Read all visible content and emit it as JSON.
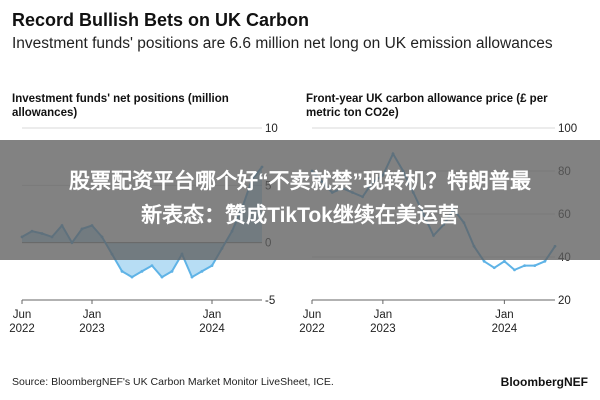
{
  "header": {
    "title": "Record Bullish Bets on UK Carbon",
    "subtitle": "Investment funds' positions are 6.6 million net long on UK emission allowances"
  },
  "chart_data": [
    {
      "type": "area",
      "title": "Investment funds' net positions (million allowances)",
      "x": [
        "2022-06",
        "2022-07",
        "2022-08",
        "2022-09",
        "2022-10",
        "2022-11",
        "2022-12",
        "2023-01",
        "2023-02",
        "2023-03",
        "2023-04",
        "2023-05",
        "2023-06",
        "2023-07",
        "2023-08",
        "2023-09",
        "2023-10",
        "2023-11",
        "2023-12",
        "2024-01",
        "2024-02",
        "2024-03",
        "2024-04",
        "2024-05",
        "2024-06"
      ],
      "values": [
        0.5,
        1.0,
        0.8,
        0.5,
        1.5,
        0.0,
        1.2,
        1.5,
        0.5,
        -1.0,
        -2.5,
        -3.0,
        -2.5,
        -2.0,
        -3.0,
        -2.5,
        -1.0,
        -3.0,
        -2.5,
        -2.0,
        -0.5,
        1.0,
        3.0,
        5.5,
        6.6
      ],
      "y_ticks": [
        "10",
        "5",
        "0",
        "-5"
      ],
      "ylim": [
        -5,
        10
      ],
      "x_ticks": [
        {
          "label": "Jun\n2022",
          "x": "2022-06"
        },
        {
          "label": "Jan\n2023",
          "x": "2023-01"
        },
        {
          "label": "Jan\n2024",
          "x": "2024-01"
        }
      ],
      "color": "#5fb3e6"
    },
    {
      "type": "line",
      "title": "Front-year UK carbon allowance price (£ per metric ton CO2e)",
      "x": [
        "2022-06",
        "2022-07",
        "2022-08",
        "2022-09",
        "2022-10",
        "2022-11",
        "2022-12",
        "2023-01",
        "2023-02",
        "2023-03",
        "2023-04",
        "2023-05",
        "2023-06",
        "2023-07",
        "2023-08",
        "2023-09",
        "2023-10",
        "2023-11",
        "2023-12",
        "2024-01",
        "2024-02",
        "2024-03",
        "2024-04",
        "2024-05",
        "2024-06"
      ],
      "values": [
        80,
        75,
        70,
        72,
        70,
        68,
        75,
        78,
        88,
        80,
        70,
        60,
        50,
        55,
        62,
        56,
        45,
        38,
        35,
        38,
        34,
        36,
        36,
        38,
        45
      ],
      "y_ticks": [
        "100",
        "80",
        "60",
        "40",
        "20"
      ],
      "ylim": [
        20,
        100
      ],
      "x_ticks": [
        {
          "label": "Jun\n2022",
          "x": "2022-06"
        },
        {
          "label": "Jan\n2023",
          "x": "2023-01"
        },
        {
          "label": "Jan\n2024",
          "x": "2024-01"
        }
      ],
      "color": "#5fb3e6"
    }
  ],
  "overlay": {
    "line1": "股票配资平台哪个好“不卖就禁”现转机？特朗普最",
    "line2": "新表态：赞成TikTok继续在美运营"
  },
  "footer": {
    "source": "Source: BloombergNEF's UK Carbon Market Monitor LiveSheet, ICE.",
    "brand": "BloombergNEF"
  }
}
